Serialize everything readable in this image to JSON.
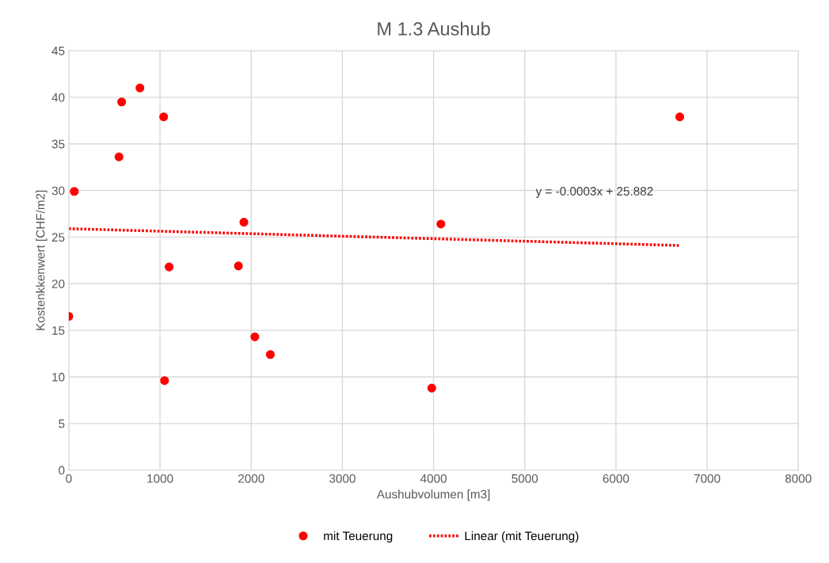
{
  "chart_data": {
    "type": "scatter",
    "title": "M 1.3 Aushub",
    "xlabel": "Aushubvolumen [m3]",
    "ylabel": "Kostenkkenwert [CHF/m2]",
    "xlim": [
      0,
      8000
    ],
    "xticks": [
      0,
      1000,
      2000,
      3000,
      4000,
      5000,
      6000,
      7000,
      8000
    ],
    "ylim": [
      0,
      45
    ],
    "yticks": [
      0,
      5,
      10,
      15,
      20,
      25,
      30,
      35,
      40,
      45
    ],
    "grid": true,
    "legend": "bottom",
    "series": [
      {
        "name": "mit Teuerung",
        "marker": "circle",
        "color": "#ff0000",
        "x": [
          0,
          60,
          550,
          580,
          780,
          1040,
          1050,
          1100,
          1860,
          1920,
          2040,
          2210,
          3980,
          4080,
          6700
        ],
        "values": [
          16.5,
          29.9,
          33.6,
          39.5,
          41.0,
          37.9,
          9.6,
          21.8,
          21.9,
          26.6,
          14.3,
          12.4,
          8.8,
          26.4,
          37.9
        ]
      },
      {
        "name": "Linear (mit Teuerung)",
        "type": "line",
        "line_style": "dotted",
        "color": "#ff0000",
        "x": [
          0,
          6700
        ],
        "values": [
          25.9,
          24.1
        ]
      }
    ],
    "annotations": [
      "y = -0.0003x + 25.882"
    ]
  }
}
